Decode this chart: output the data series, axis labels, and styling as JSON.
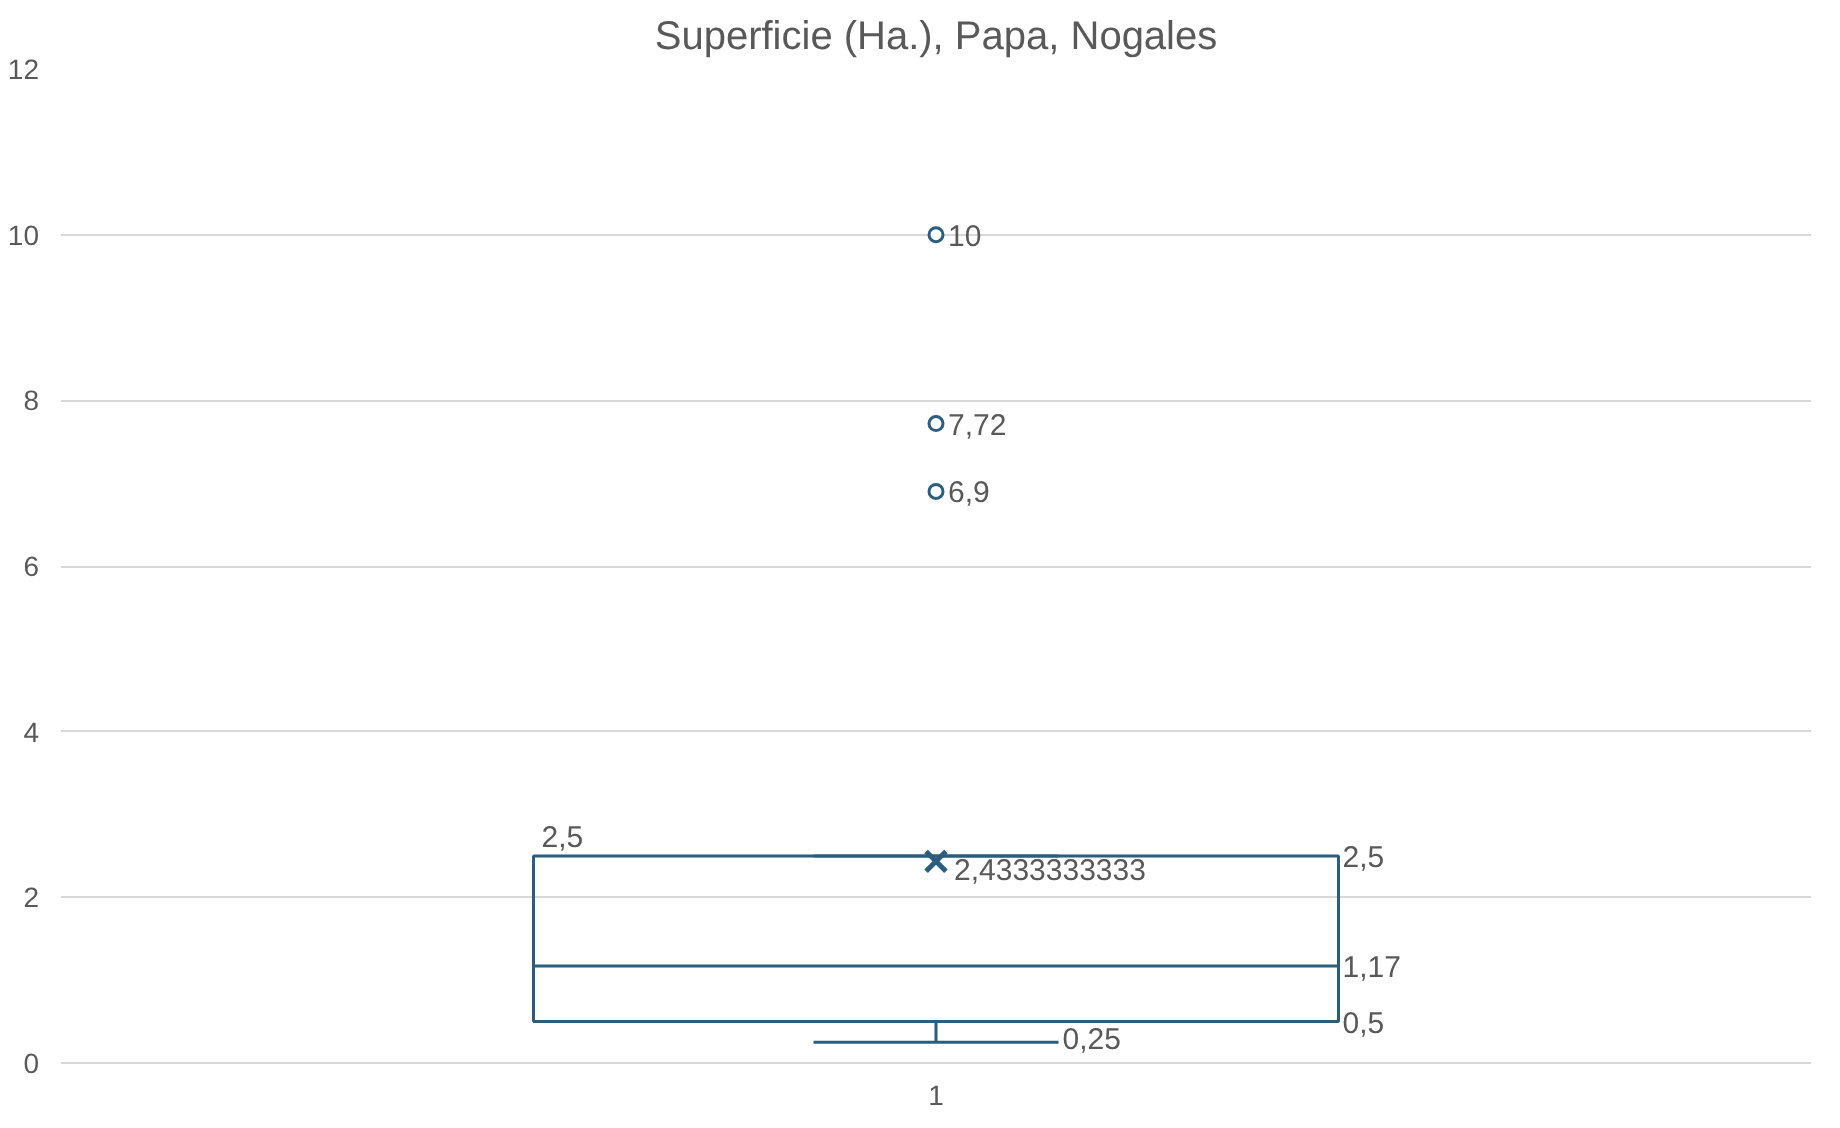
{
  "chart_data": {
    "type": "box",
    "title": "Superficie (Ha.), Papa, Nogales",
    "categories": [
      "1"
    ],
    "series": [
      {
        "color": "#2b5d7c",
        "boxes": [
          {
            "low": 0.25,
            "q1": 0.5,
            "median": 1.17,
            "q3": 2.5,
            "high": 2.5,
            "mean": 2.4333333333,
            "outliers": [
              6.9,
              7.72,
              10
            ]
          }
        ]
      }
    ],
    "annotations": [
      "6,9",
      "7,72",
      "10",
      "2,4333333333",
      "2,5",
      "2,5",
      "1,17",
      "0,5",
      "0,25"
    ],
    "ylim": [
      0,
      12
    ],
    "yticks": [
      0,
      2,
      4,
      6,
      8,
      10,
      12
    ],
    "grid": "y"
  }
}
